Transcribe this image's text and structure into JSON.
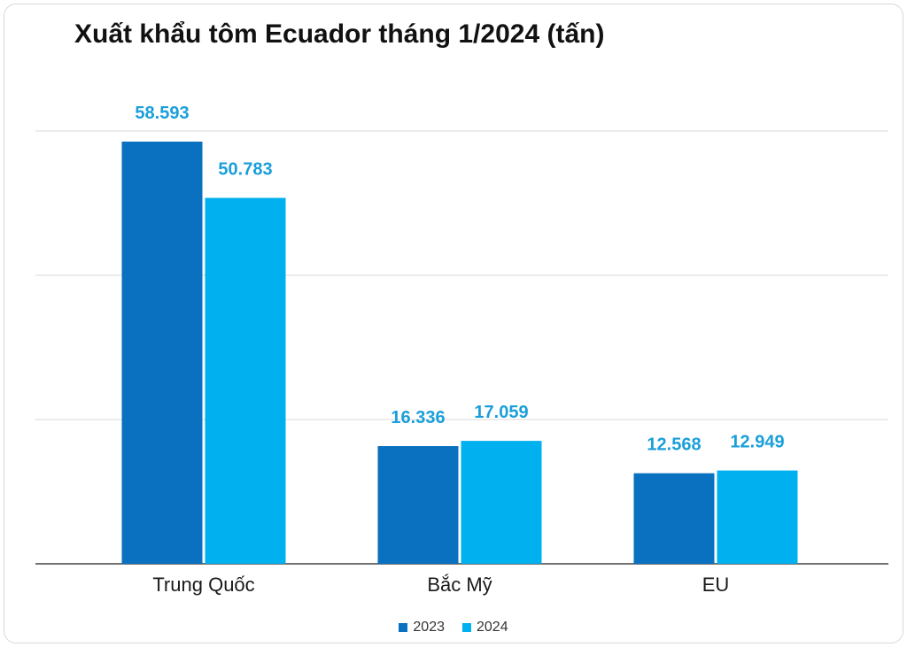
{
  "chart_data": {
    "type": "bar",
    "title": "Xuất khẩu tôm Ecuador tháng 1/2024 (tấn)",
    "categories": [
      "Trung Quốc",
      "Bắc Mỹ",
      "EU"
    ],
    "series": [
      {
        "name": "2023",
        "values": [
          58593,
          16336,
          12568
        ],
        "labels": [
          "58.593",
          "16.336",
          "12.568"
        ],
        "color": "#0A70C0",
        "label_color": "#1A9FD9"
      },
      {
        "name": "2024",
        "values": [
          50783,
          17059,
          12949
        ],
        "labels": [
          "50.783",
          "17.059",
          "12.949"
        ],
        "color": "#00B0EF",
        "label_color": "#1A9FD9"
      }
    ],
    "ylim": [
      0,
      60000
    ],
    "grid": true,
    "legend_position": "bottom",
    "xlabel": "",
    "ylabel": ""
  }
}
